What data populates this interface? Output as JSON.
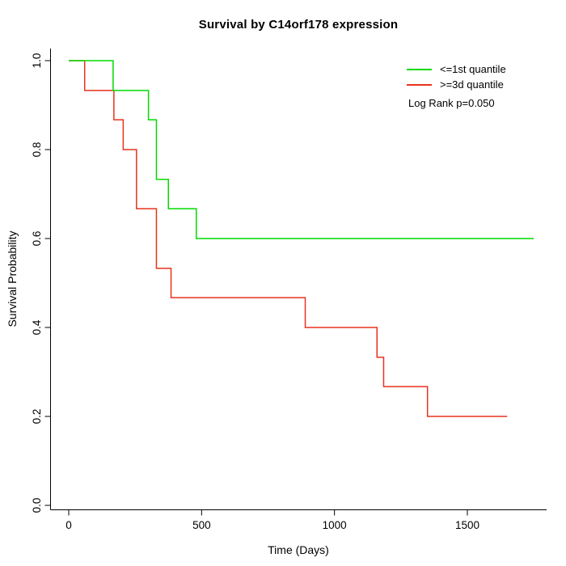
{
  "title": "Survival by C14orf178 expression",
  "axes": {
    "xlabel": "Time (Days)",
    "ylabel": "Survival Probability",
    "x_ticks": [
      "0",
      "500",
      "1000",
      "1500"
    ],
    "y_ticks": [
      "0.0",
      "0.2",
      "0.4",
      "0.6",
      "0.8",
      "1.0"
    ]
  },
  "legend": {
    "items": [
      {
        "label": "<=1st quantile",
        "color": "#00DC00"
      },
      {
        "label": ">=3d quantile",
        "color": "#E8321E"
      }
    ],
    "annotation": "Log Rank p=0.050"
  },
  "chart_data": {
    "type": "line",
    "subtype": "kaplan-meier-step",
    "title": "Survival by C14orf178 expression",
    "xlabel": "Time (Days)",
    "ylabel": "Survival Probability",
    "xlim": [
      0,
      1750
    ],
    "ylim": [
      0,
      1
    ],
    "x_ticks": [
      0,
      500,
      1000,
      1500
    ],
    "y_ticks": [
      0,
      0.2,
      0.4,
      0.6,
      0.8,
      1.0
    ],
    "grid": false,
    "legend_position": "top-right",
    "annotation": "Log Rank p=0.050",
    "series": [
      {
        "name": "<=1st quantile",
        "color": "#00DC00",
        "end_time": 1750,
        "steps": [
          [
            0,
            1.0
          ],
          [
            167,
            0.933
          ],
          [
            300,
            0.867
          ],
          [
            330,
            0.733
          ],
          [
            375,
            0.667
          ],
          [
            480,
            0.6
          ]
        ]
      },
      {
        "name": ">=3d quantile",
        "color": "#E8321E",
        "end_time": 1650,
        "steps": [
          [
            0,
            1.0
          ],
          [
            60,
            0.933
          ],
          [
            170,
            0.867
          ],
          [
            205,
            0.8
          ],
          [
            255,
            0.667
          ],
          [
            330,
            0.533
          ],
          [
            385,
            0.467
          ],
          [
            890,
            0.4
          ],
          [
            1160,
            0.333
          ],
          [
            1185,
            0.267
          ],
          [
            1350,
            0.2
          ]
        ]
      }
    ]
  }
}
